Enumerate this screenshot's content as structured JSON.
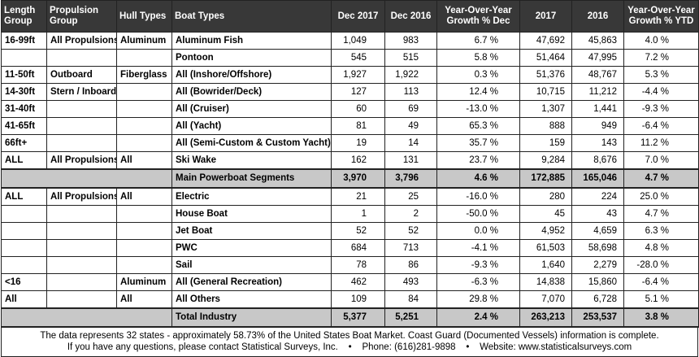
{
  "headers": {
    "length_group": "Length Group",
    "propulsion_group": "Propulsion Group",
    "hull_types": "Hull Types",
    "boat_types": "Boat Types",
    "dec_2017": "Dec 2017",
    "dec_2016": "Dec 2016",
    "yoy_dec": "Year-Over-Year Growth % Dec",
    "y2017": "2017",
    "y2016": "2016",
    "yoy_ytd": "Year-Over-Year Growth % YTD"
  },
  "rows_top": [
    {
      "length": "16-99ft",
      "propulsion": "All Propulsions",
      "hull": "Aluminum",
      "boat": "Aluminum Fish",
      "dec2017": "1,049",
      "dec2016": "983",
      "yoy_dec": "6.7 %",
      "y2017": "47,692",
      "y2016": "45,863",
      "yoy_ytd": "4.0 %"
    },
    {
      "length": "",
      "propulsion": "",
      "hull": "",
      "boat": "Pontoon",
      "dec2017": "545",
      "dec2016": "515",
      "yoy_dec": "5.8 %",
      "y2017": "51,464",
      "y2016": "47,995",
      "yoy_ytd": "7.2 %"
    },
    {
      "length": "11-50ft",
      "propulsion": "Outboard",
      "hull": "Fiberglass",
      "boat": "All (Inshore/Offshore)",
      "dec2017": "1,927",
      "dec2016": "1,922",
      "yoy_dec": "0.3 %",
      "y2017": "51,376",
      "y2016": "48,767",
      "yoy_ytd": "5.3 %"
    },
    {
      "length": "14-30ft",
      "propulsion": "Stern / Inboard",
      "hull": "",
      "boat": "All (Bowrider/Deck)",
      "dec2017": "127",
      "dec2016": "113",
      "yoy_dec": "12.4 %",
      "y2017": "10,715",
      "y2016": "11,212",
      "yoy_ytd": "-4.4 %"
    },
    {
      "length": "31-40ft",
      "propulsion": "",
      "hull": "",
      "boat": "All (Cruiser)",
      "dec2017": "60",
      "dec2016": "69",
      "yoy_dec": "-13.0 %",
      "y2017": "1,307",
      "y2016": "1,441",
      "yoy_ytd": "-9.3 %"
    },
    {
      "length": "41-65ft",
      "propulsion": "",
      "hull": "",
      "boat": "All (Yacht)",
      "dec2017": "81",
      "dec2016": "49",
      "yoy_dec": "65.3 %",
      "y2017": "888",
      "y2016": "949",
      "yoy_ytd": "-6.4 %"
    },
    {
      "length": "66ft+",
      "propulsion": "",
      "hull": "",
      "boat": "All (Semi-Custom & Custom Yacht)",
      "dec2017": "19",
      "dec2016": "14",
      "yoy_dec": "35.7 %",
      "y2017": "159",
      "y2016": "143",
      "yoy_ytd": "11.2 %"
    },
    {
      "length": "ALL",
      "propulsion": "All Propulsions",
      "hull": "All",
      "boat": "Ski Wake",
      "dec2017": "162",
      "dec2016": "131",
      "yoy_dec": "23.7 %",
      "y2017": "9,284",
      "y2016": "8,676",
      "yoy_ytd": "7.0 %"
    }
  ],
  "main_segments": {
    "label": "Main Powerboat Segments",
    "dec2017": "3,970",
    "dec2016": "3,796",
    "yoy_dec": "4.6 %",
    "y2017": "172,885",
    "y2016": "165,046",
    "yoy_ytd": "4.7 %"
  },
  "rows_bottom": [
    {
      "length": "ALL",
      "propulsion": "All Propulsions",
      "hull": "All",
      "boat": "Electric",
      "dec2017": "21",
      "dec2016": "25",
      "yoy_dec": "-16.0 %",
      "y2017": "280",
      "y2016": "224",
      "yoy_ytd": "25.0 %"
    },
    {
      "length": "",
      "propulsion": "",
      "hull": "",
      "boat": "House Boat",
      "dec2017": "1",
      "dec2016": "2",
      "yoy_dec": "-50.0 %",
      "y2017": "45",
      "y2016": "43",
      "yoy_ytd": "4.7 %"
    },
    {
      "length": "",
      "propulsion": "",
      "hull": "",
      "boat": "Jet Boat",
      "dec2017": "52",
      "dec2016": "52",
      "yoy_dec": "0.0 %",
      "y2017": "4,952",
      "y2016": "4,659",
      "yoy_ytd": "6.3 %"
    },
    {
      "length": "",
      "propulsion": "",
      "hull": "",
      "boat": "PWC",
      "dec2017": "684",
      "dec2016": "713",
      "yoy_dec": "-4.1 %",
      "y2017": "61,503",
      "y2016": "58,698",
      "yoy_ytd": "4.8 %"
    },
    {
      "length": "",
      "propulsion": "",
      "hull": "",
      "boat": "Sail",
      "dec2017": "78",
      "dec2016": "86",
      "yoy_dec": "-9.3 %",
      "y2017": "1,640",
      "y2016": "2,279",
      "yoy_ytd": "-28.0 %"
    },
    {
      "length": "<16",
      "propulsion": "",
      "hull": "Aluminum",
      "boat": "All (General Recreation)",
      "dec2017": "462",
      "dec2016": "493",
      "yoy_dec": "-6.3 %",
      "y2017": "14,838",
      "y2016": "15,860",
      "yoy_ytd": "-6.4 %"
    },
    {
      "length": "All",
      "propulsion": "",
      "hull": "All",
      "boat": "All Others",
      "dec2017": "109",
      "dec2016": "84",
      "yoy_dec": "29.8 %",
      "y2017": "7,070",
      "y2016": "6,728",
      "yoy_ytd": "5.1 %"
    }
  ],
  "total_industry": {
    "label": "Total Industry",
    "dec2017": "5,377",
    "dec2016": "5,251",
    "yoy_dec": "2.4 %",
    "y2017": "263,213",
    "y2016": "253,537",
    "yoy_ytd": "3.8 %"
  },
  "footer": {
    "line1": "The data represents 32 states - approximately 58.73% of the United States Boat Market.  Coast Guard (Documented Vessels) information is complete.",
    "line2": "If you have any questions, please contact Statistical Surveys, Inc.    •    Phone: (616)281-9898    •    Website: www.statisticalsurveys.com"
  }
}
